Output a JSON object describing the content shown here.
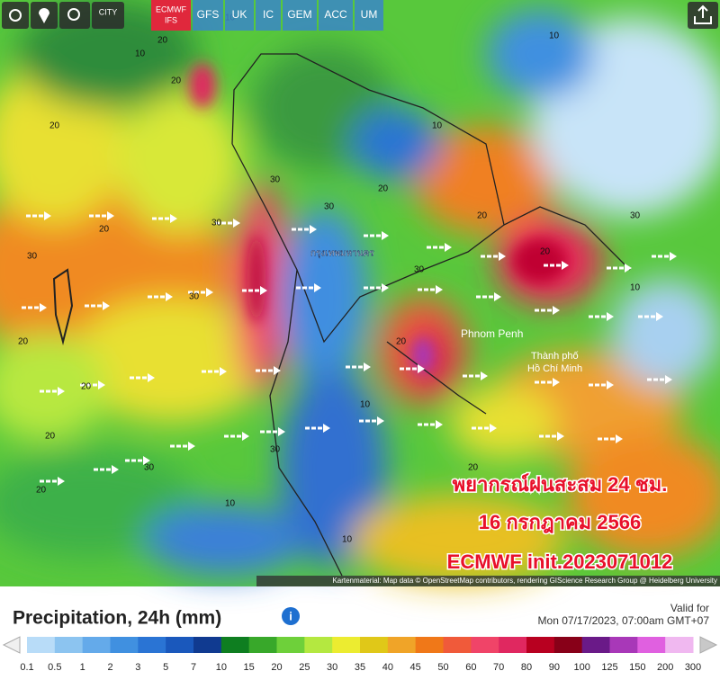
{
  "toolbar": {
    "city_button": "CITY",
    "active_model": {
      "line1": "ECMWF",
      "line2": "IFS"
    },
    "models": [
      "GFS",
      "UK",
      "IC",
      "GEM",
      "ACC",
      "UM"
    ]
  },
  "map": {
    "place_labels": [
      "กรุงเทพมหานคร",
      "Phnom Penh",
      "Thành phố",
      "Hồ Chí Minh"
    ],
    "contour_labels": [
      20,
      30,
      20,
      10,
      20,
      30,
      20,
      10,
      30,
      30,
      20,
      30,
      20,
      10,
      20,
      30,
      20,
      10,
      10,
      20,
      30,
      20,
      30,
      10,
      20,
      10,
      20,
      30,
      20,
      10
    ],
    "overlay_lines": [
      "พยากรณ์ฝนสะสม 24 ชม.",
      "16 กรกฎาคม 2566",
      "ECMWF init.2023071012"
    ],
    "attribution": "Kartenmaterial: Map data © OpenStreetMap contributors, rendering GIScience Research Group @ Heidelberg University"
  },
  "footer": {
    "title": "Precipitation, 24h (mm)",
    "info_icon": "i",
    "valid_for_label": "Valid for",
    "valid_time": "Mon 07/17/2023, 07:00am GMT+07"
  },
  "legend": {
    "ticks": [
      0.1,
      0.5,
      1,
      2,
      3,
      5,
      7,
      10,
      15,
      20,
      25,
      30,
      35,
      40,
      45,
      50,
      60,
      70,
      80,
      90,
      100,
      125,
      150,
      200,
      300
    ],
    "colors": [
      "#b8dcf8",
      "#8cc4f0",
      "#64aaea",
      "#4090e0",
      "#2a74d4",
      "#1a58bc",
      "#103a90",
      "#0e7e20",
      "#38a82a",
      "#6ed03a",
      "#b4e840",
      "#ecec30",
      "#e0c818",
      "#f0a428",
      "#f07818",
      "#f05a3a",
      "#f04468",
      "#e02860",
      "#b80020",
      "#880018",
      "#6a1a88",
      "#a838b8",
      "#e060e0",
      "#f0b8f0"
    ]
  }
}
